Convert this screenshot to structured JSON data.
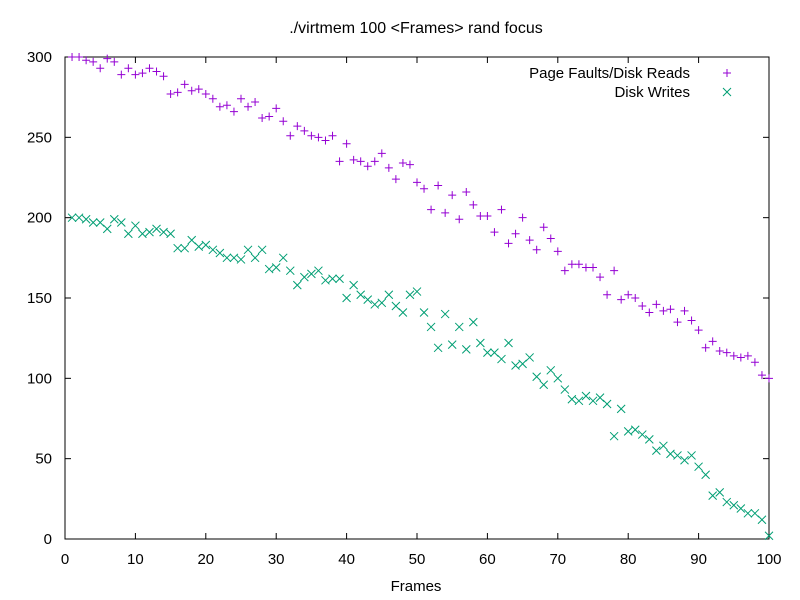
{
  "chart_data": {
    "type": "scatter",
    "title": "./virtmem 100 <Frames> rand focus",
    "xlabel": "Frames",
    "ylabel": "",
    "xlim": [
      0,
      100
    ],
    "ylim": [
      0,
      300
    ],
    "xticks": [
      0,
      10,
      20,
      30,
      40,
      50,
      60,
      70,
      80,
      90,
      100
    ],
    "yticks": [
      0,
      50,
      100,
      150,
      200,
      250,
      300
    ],
    "grid": false,
    "legend_position": "top-right",
    "x": [
      1,
      2,
      3,
      4,
      5,
      6,
      7,
      8,
      9,
      10,
      11,
      12,
      13,
      14,
      15,
      16,
      17,
      18,
      19,
      20,
      21,
      22,
      23,
      24,
      25,
      26,
      27,
      28,
      29,
      30,
      31,
      32,
      33,
      34,
      35,
      36,
      37,
      38,
      39,
      40,
      41,
      42,
      43,
      44,
      45,
      46,
      47,
      48,
      49,
      50,
      51,
      52,
      53,
      54,
      55,
      56,
      57,
      58,
      59,
      60,
      61,
      62,
      63,
      64,
      65,
      66,
      67,
      68,
      69,
      70,
      71,
      72,
      73,
      74,
      75,
      76,
      77,
      78,
      79,
      80,
      81,
      82,
      83,
      84,
      85,
      86,
      87,
      88,
      89,
      90,
      91,
      92,
      93,
      94,
      95,
      96,
      97,
      98,
      99,
      100
    ],
    "series": [
      {
        "name": "Page Faults/Disk Reads",
        "marker": "plus",
        "color": "#9400d3",
        "values": [
          300,
          300,
          298,
          297,
          293,
          299,
          297,
          289,
          293,
          289,
          290,
          293,
          291,
          288,
          277,
          278,
          283,
          279,
          280,
          277,
          274,
          269,
          270,
          266,
          274,
          269,
          272,
          262,
          263,
          268,
          260,
          251,
          257,
          254,
          251,
          250,
          248,
          251,
          235,
          246,
          236,
          235,
          232,
          235,
          240,
          231,
          224,
          234,
          233,
          222,
          218,
          205,
          220,
          203,
          214,
          199,
          216,
          208,
          201,
          201,
          191,
          205,
          184,
          190,
          200,
          186,
          180,
          194,
          187,
          179,
          167,
          171,
          171,
          169,
          169,
          163,
          152,
          167,
          149,
          152,
          150,
          145,
          141,
          146,
          142,
          143,
          135,
          142,
          136,
          130,
          119,
          123,
          117,
          116,
          114,
          113,
          114,
          110,
          102,
          100
        ]
      },
      {
        "name": "Disk Writes",
        "marker": "cross",
        "color": "#009e73",
        "values": [
          200,
          200,
          199,
          197,
          197,
          193,
          199,
          197,
          190,
          195,
          190,
          191,
          193,
          191,
          190,
          181,
          181,
          186,
          182,
          183,
          180,
          178,
          175,
          175,
          174,
          180,
          175,
          180,
          168,
          169,
          175,
          167,
          158,
          163,
          165,
          167,
          161,
          162,
          162,
          150,
          158,
          152,
          149,
          146,
          147,
          152,
          145,
          141,
          152,
          154,
          141,
          132,
          119,
          140,
          121,
          132,
          118,
          135,
          122,
          116,
          116,
          112,
          122,
          108,
          109,
          113,
          101,
          96,
          105,
          100,
          93,
          87,
          86,
          89,
          86,
          88,
          84,
          64,
          81,
          67,
          68,
          65,
          62,
          55,
          58,
          53,
          52,
          49,
          52,
          45,
          40,
          27,
          29,
          23,
          21,
          19,
          16,
          16,
          12,
          2
        ]
      }
    ]
  }
}
